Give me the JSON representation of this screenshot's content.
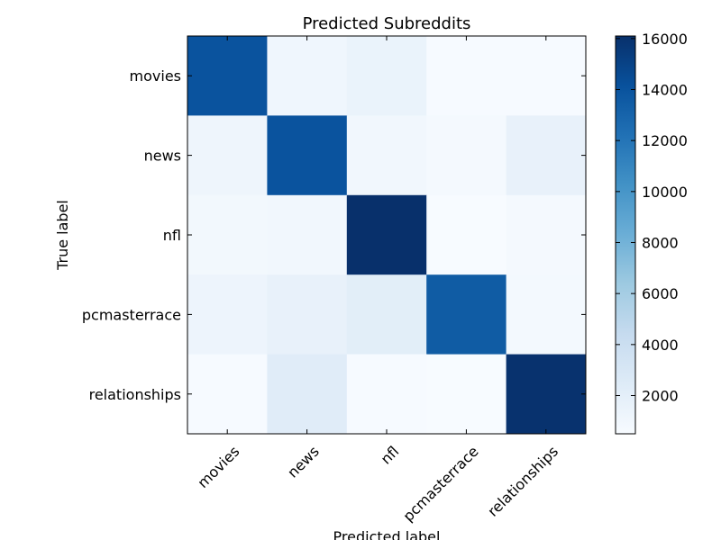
{
  "chart_data": {
    "type": "heatmap",
    "title": "Predicted Subreddits",
    "xlabel": "Predicted label",
    "ylabel": "True label",
    "x_categories": [
      "movies",
      "news",
      "nfl",
      "pcmasterrace",
      "relationships"
    ],
    "y_categories": [
      "movies",
      "news",
      "nfl",
      "pcmasterrace",
      "relationships"
    ],
    "values": [
      [
        14000,
        1100,
        1500,
        600,
        600
      ],
      [
        1200,
        14000,
        1000,
        700,
        1700
      ],
      [
        900,
        1000,
        16100,
        500,
        700
      ],
      [
        1300,
        1700,
        2100,
        13500,
        800
      ],
      [
        600,
        2300,
        600,
        500,
        16000
      ]
    ],
    "colorbar": {
      "min": 500,
      "max": 16100,
      "ticks": [
        "2000",
        "4000",
        "6000",
        "8000",
        "10000",
        "12000",
        "14000",
        "16000"
      ],
      "tick_values": [
        2000,
        4000,
        6000,
        8000,
        10000,
        12000,
        14000,
        16000
      ]
    },
    "colormap": [
      "#f7fbff",
      "#deebf7",
      "#c6dbef",
      "#9ecae1",
      "#6baed6",
      "#4292c6",
      "#2171b5",
      "#08519c",
      "#08306b"
    ],
    "grid": false
  }
}
